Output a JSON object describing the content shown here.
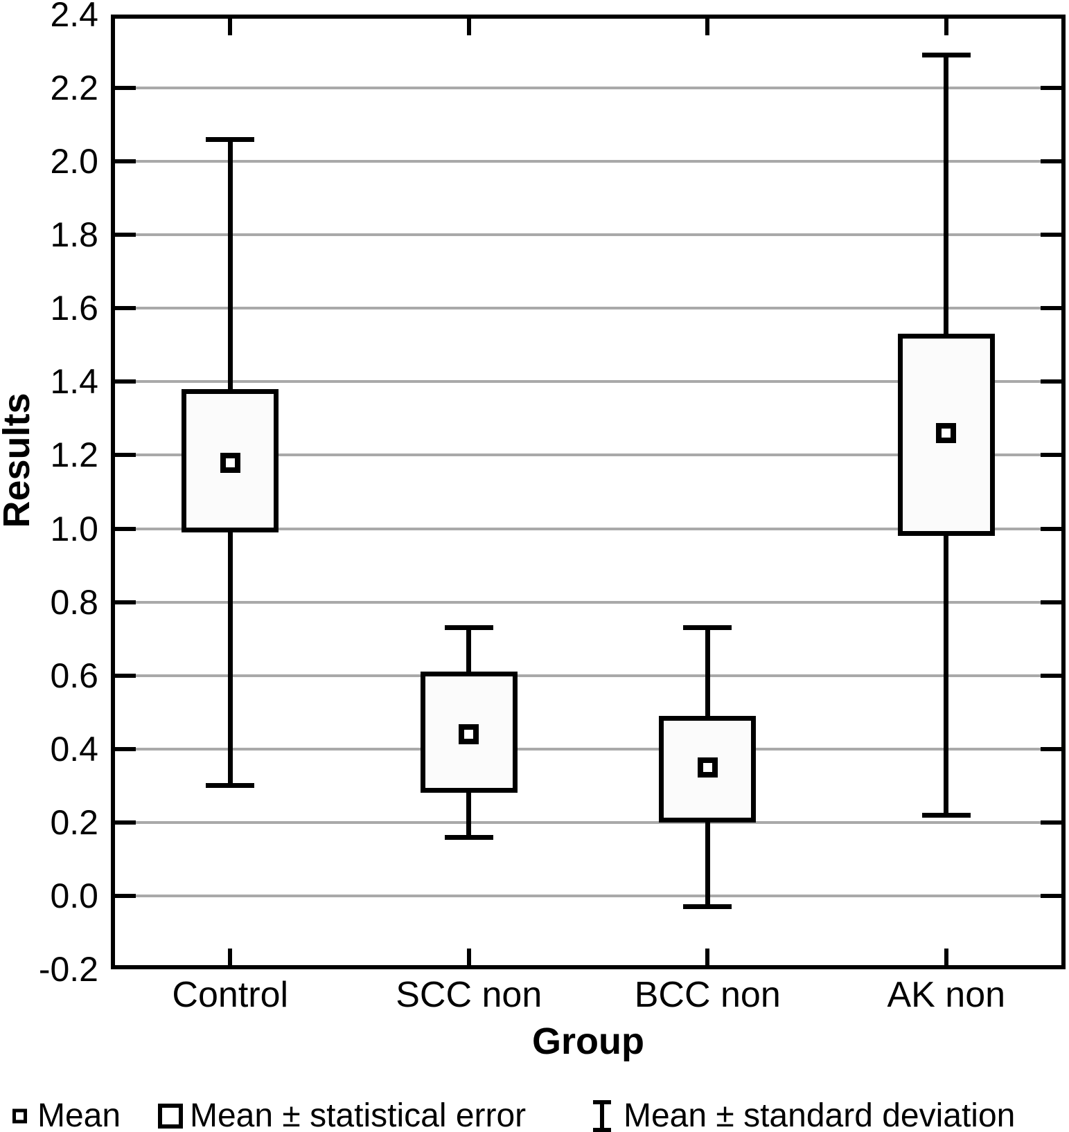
{
  "chart_data": {
    "type": "boxplot",
    "title": "",
    "xlabel": "Group",
    "ylabel": "Results",
    "ylim": [
      -0.2,
      2.4
    ],
    "ytick_step": 0.2,
    "yticks": [
      "2.4",
      "2.2",
      "2.0",
      "1.8",
      "1.6",
      "1.4",
      "1.2",
      "1.0",
      "0.8",
      "0.6",
      "0.4",
      "0.2",
      "0.0",
      "-0.2"
    ],
    "categories": [
      "Control",
      "SCC non",
      "BCC non",
      "AK non"
    ],
    "series": [
      {
        "name": "Control",
        "mean": 1.18,
        "se_low": 0.99,
        "se_high": 1.38,
        "sd_low": 0.3,
        "sd_high": 2.06
      },
      {
        "name": "SCC non",
        "mean": 0.44,
        "se_low": 0.28,
        "se_high": 0.61,
        "sd_low": 0.16,
        "sd_high": 0.73
      },
      {
        "name": "BCC non",
        "mean": 0.35,
        "se_low": 0.2,
        "se_high": 0.49,
        "sd_low": -0.03,
        "sd_high": 0.73
      },
      {
        "name": "AK non",
        "mean": 1.26,
        "se_low": 0.98,
        "se_high": 1.53,
        "sd_low": 0.22,
        "sd_high": 2.29
      }
    ],
    "legend": [
      {
        "symbol": "mean-square-icon",
        "label": "Mean"
      },
      {
        "symbol": "se-box-icon",
        "label": "Mean ± statistical error"
      },
      {
        "symbol": "sd-whisker-icon",
        "label": "Mean ± standard deviation"
      }
    ],
    "legend_position": "bottom",
    "grid": true,
    "colors": {
      "stroke": "#000000",
      "gridline": "#a9a9a9",
      "box_fill": "#fbfbfb",
      "background": "#ffffff"
    }
  }
}
